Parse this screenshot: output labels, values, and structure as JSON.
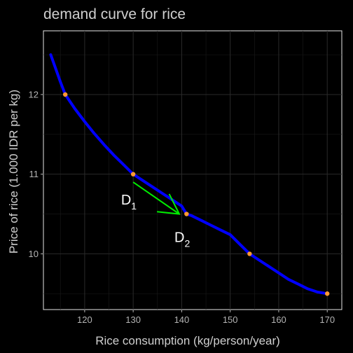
{
  "chart_data": {
    "type": "line",
    "title": "demand curve for rice",
    "xlabel": "Rice consumption (kg/person/year)",
    "ylabel": "Price of rice (1.000 IDR per kg)",
    "xlim": [
      111.5,
      173
    ],
    "ylim": [
      9.3,
      12.8
    ],
    "x_ticks": [
      120,
      130,
      140,
      150,
      160,
      170
    ],
    "y_ticks": [
      10,
      11,
      12
    ],
    "grid": true,
    "curve": {
      "color": "#0000ff",
      "x": [
        113,
        114,
        115,
        116,
        118,
        120,
        122,
        124,
        126,
        128,
        130,
        132,
        134,
        136,
        138,
        140,
        141,
        142,
        144,
        146,
        148,
        150,
        152,
        154,
        156,
        158,
        160,
        162,
        164,
        166,
        168,
        170
      ],
      "y": [
        12.5,
        12.33,
        12.16,
        12.0,
        11.82,
        11.66,
        11.51,
        11.37,
        11.24,
        11.12,
        11.0,
        10.92,
        10.84,
        10.76,
        10.68,
        10.6,
        10.5,
        10.48,
        10.42,
        10.36,
        10.3,
        10.24,
        10.12,
        10.0,
        9.92,
        9.84,
        9.76,
        9.68,
        9.62,
        9.56,
        9.52,
        9.5
      ]
    },
    "points": {
      "color": "#ff9933",
      "x": [
        116,
        130,
        141,
        154,
        170
      ],
      "y": [
        12.0,
        11.0,
        10.5,
        10.0,
        9.5
      ]
    },
    "arrow": {
      "color": "#00ee00",
      "from": [
        130,
        10.9
      ],
      "to": [
        139.5,
        10.5
      ]
    },
    "annotations": [
      {
        "main": "D",
        "sub": "1",
        "x": 127.5,
        "y": 10.62
      },
      {
        "main": "D",
        "sub": "2",
        "x": 138.5,
        "y": 10.15
      }
    ]
  }
}
